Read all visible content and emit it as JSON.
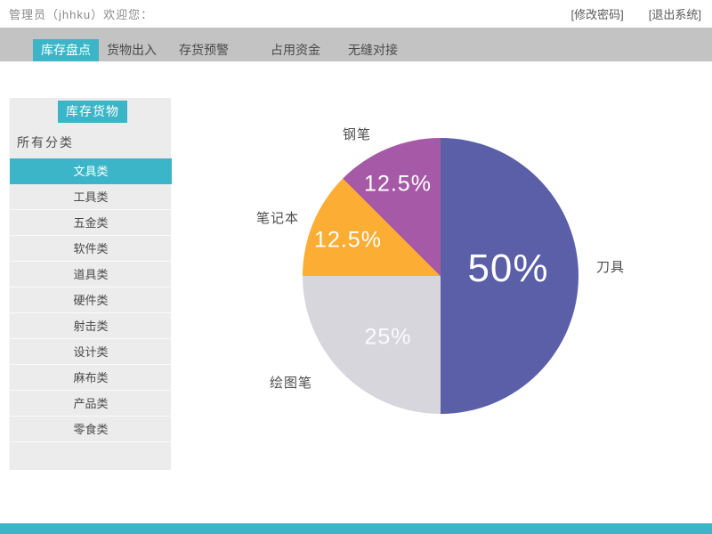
{
  "topbar": {
    "welcome": "管理员（jhhku）欢迎您：",
    "links": [
      {
        "label": "[修改密码]"
      },
      {
        "label": "[退出系统]"
      }
    ]
  },
  "nav": {
    "tabs": [
      {
        "label": "库存盘点",
        "active": true
      },
      {
        "label": "货物出入",
        "active": false
      },
      {
        "label": "存货预警",
        "active": false
      },
      {
        "label": "占用资金",
        "active": false
      },
      {
        "label": "无缝对接",
        "active": false
      }
    ]
  },
  "sidebar": {
    "title": "库存货物",
    "filter_label": "所有分类",
    "categories": [
      {
        "label": "文具类",
        "active": true
      },
      {
        "label": "工具类",
        "active": false
      },
      {
        "label": "五金类",
        "active": false
      },
      {
        "label": "软件类",
        "active": false
      },
      {
        "label": "道具类",
        "active": false
      },
      {
        "label": "硬件类",
        "active": false
      },
      {
        "label": "射击类",
        "active": false
      },
      {
        "label": "设计类",
        "active": false
      },
      {
        "label": "麻布类",
        "active": false
      },
      {
        "label": "产品类",
        "active": false
      },
      {
        "label": "零食类",
        "active": false
      }
    ]
  },
  "chart_data": {
    "type": "pie",
    "title": "",
    "legend": "none",
    "label_position": "outside",
    "start_angle_deg": 0,
    "direction": "clockwise",
    "slices": [
      {
        "label": "刀具",
        "value": 50,
        "pct_label": "50%",
        "color": "#5a5fa8"
      },
      {
        "label": "绘图笔",
        "value": 25,
        "pct_label": "25%",
        "color": "#d6d6dc"
      },
      {
        "label": "笔记本",
        "value": 12.5,
        "pct_label": "12.5%",
        "color": "#fbad34"
      },
      {
        "label": "钢笔",
        "value": 12.5,
        "pct_label": "12.5%",
        "color": "#a659a6"
      }
    ]
  },
  "colors": {
    "accent_cyan": "#3bb5c7",
    "nav_band": "#c3c3c3",
    "sidebar_bg": "#ececec",
    "footer": "#3bb5c7"
  }
}
